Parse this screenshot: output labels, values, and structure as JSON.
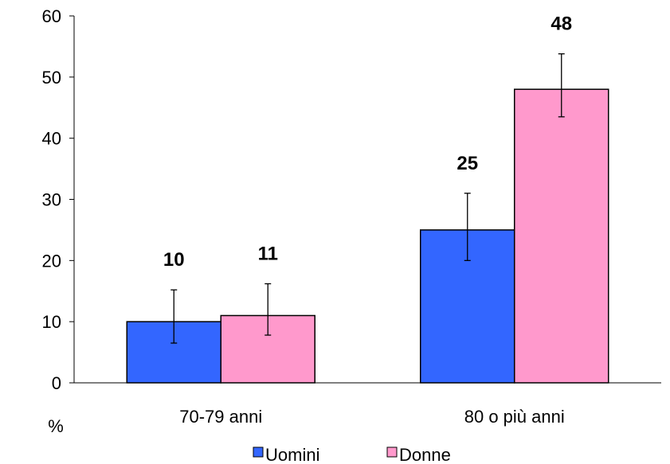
{
  "chart_data": {
    "type": "bar",
    "categories": [
      "70-79 anni",
      "80 o più anni"
    ],
    "series": [
      {
        "name": "Uomini",
        "color": "#3366FF",
        "values": [
          10,
          25
        ],
        "value_labels": [
          "10",
          "25"
        ],
        "err_low": [
          6.5,
          20
        ],
        "err_high": [
          15.2,
          31
        ]
      },
      {
        "name": "Donne",
        "color": "#FF99CC",
        "values": [
          11,
          48
        ],
        "value_labels": [
          "11",
          "48"
        ],
        "err_low": [
          7.8,
          43.5
        ],
        "err_high": [
          16.2,
          53.8
        ]
      }
    ],
    "ylabel": "%",
    "ylim": [
      0,
      60
    ],
    "yticks": [
      0,
      10,
      20,
      30,
      40,
      50,
      60
    ],
    "legend_position": "bottom",
    "grid": false
  }
}
